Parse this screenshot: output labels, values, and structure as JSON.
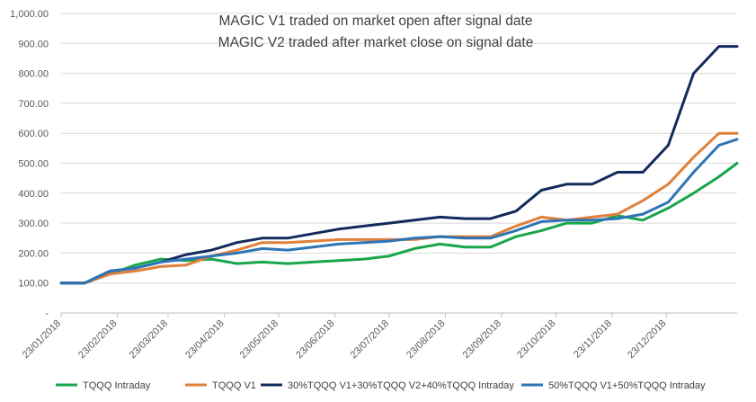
{
  "chart_data": {
    "type": "line",
    "title": "",
    "xlabel": "",
    "ylabel": "",
    "ylim": [
      0,
      1000
    ],
    "grid": true,
    "legend_position": "bottom",
    "annotations": [
      "MAGIC V1 traded on market open after signal date",
      "MAGIC V2 traded after market close on signal date"
    ],
    "y_ticks": [
      "-",
      "100.00",
      "200.00",
      "300.00",
      "400.00",
      "500.00",
      "600.00",
      "700.00",
      "800.00",
      "900.00",
      "1,000.00"
    ],
    "x_ticks": [
      "23/01/2018",
      "23/02/2018",
      "23/03/2018",
      "23/04/2018",
      "23/05/2018",
      "23/06/2018",
      "23/07/2018",
      "23/08/2018",
      "23/09/2018",
      "23/10/2018",
      "23/11/2018",
      "23/12/2018"
    ],
    "x": [
      "2018-01-23",
      "2018-02-05",
      "2018-02-19",
      "2018-03-05",
      "2018-03-19",
      "2018-04-02",
      "2018-04-16",
      "2018-04-30",
      "2018-05-14",
      "2018-05-28",
      "2018-06-11",
      "2018-06-25",
      "2018-07-09",
      "2018-07-23",
      "2018-08-06",
      "2018-08-20",
      "2018-09-03",
      "2018-09-17",
      "2018-10-01",
      "2018-10-15",
      "2018-10-29",
      "2018-11-12",
      "2018-11-26",
      "2018-12-10",
      "2018-12-24",
      "2019-01-07",
      "2019-01-21",
      "2019-01-31"
    ],
    "series": [
      {
        "name": "TQQQ Intraday",
        "color": "#18a64a",
        "values": [
          100,
          100,
          130,
          160,
          180,
          175,
          180,
          165,
          170,
          165,
          170,
          175,
          180,
          190,
          215,
          230,
          220,
          220,
          255,
          275,
          300,
          300,
          325,
          310,
          350,
          400,
          455,
          500
        ]
      },
      {
        "name": "TQQQ V1",
        "color": "#e0803a",
        "values": [
          100,
          100,
          130,
          140,
          155,
          160,
          190,
          210,
          235,
          235,
          240,
          245,
          245,
          245,
          245,
          255,
          255,
          255,
          290,
          320,
          310,
          320,
          330,
          375,
          430,
          520,
          600,
          600
        ]
      },
      {
        "name": "30%TQQQ V1+30%TQQQ V2+40%TQQQ Intraday",
        "color": "#132a5c",
        "values": [
          100,
          100,
          140,
          150,
          170,
          195,
          210,
          235,
          250,
          250,
          265,
          280,
          290,
          300,
          310,
          320,
          315,
          315,
          340,
          410,
          430,
          430,
          470,
          470,
          560,
          800,
          890,
          890
        ]
      },
      {
        "name": "50%TQQQ V1+50%TQQQ Intraday",
        "color": "#2e75b6",
        "values": [
          100,
          100,
          140,
          150,
          170,
          180,
          190,
          200,
          215,
          210,
          220,
          230,
          235,
          240,
          250,
          255,
          250,
          250,
          275,
          305,
          310,
          310,
          315,
          330,
          370,
          470,
          560,
          580
        ]
      }
    ]
  }
}
